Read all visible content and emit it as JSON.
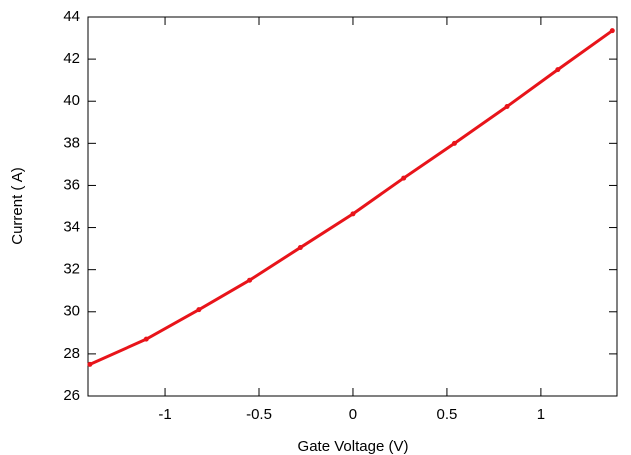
{
  "chart_data": {
    "type": "line",
    "xlabel": "Gate Voltage (V)",
    "ylabel": "Current (  A)",
    "x": [
      -1.4,
      -1.1,
      -0.82,
      -0.55,
      -0.28,
      0,
      0.27,
      0.54,
      0.82,
      1.09,
      1.38
    ],
    "series": [
      {
        "color": "#e8141a",
        "values": [
          27.5,
          28.7,
          30.1,
          31.5,
          33.05,
          34.65,
          36.35,
          38.0,
          39.75,
          41.5,
          43.35
        ]
      }
    ],
    "xlim": [
      -1.41,
      1.405
    ],
    "ylim": [
      26,
      44
    ],
    "xticks": [
      -1,
      -0.5,
      0,
      0.5,
      1
    ],
    "yticks": [
      26,
      28,
      30,
      32,
      34,
      36,
      38,
      40,
      42,
      44
    ]
  }
}
